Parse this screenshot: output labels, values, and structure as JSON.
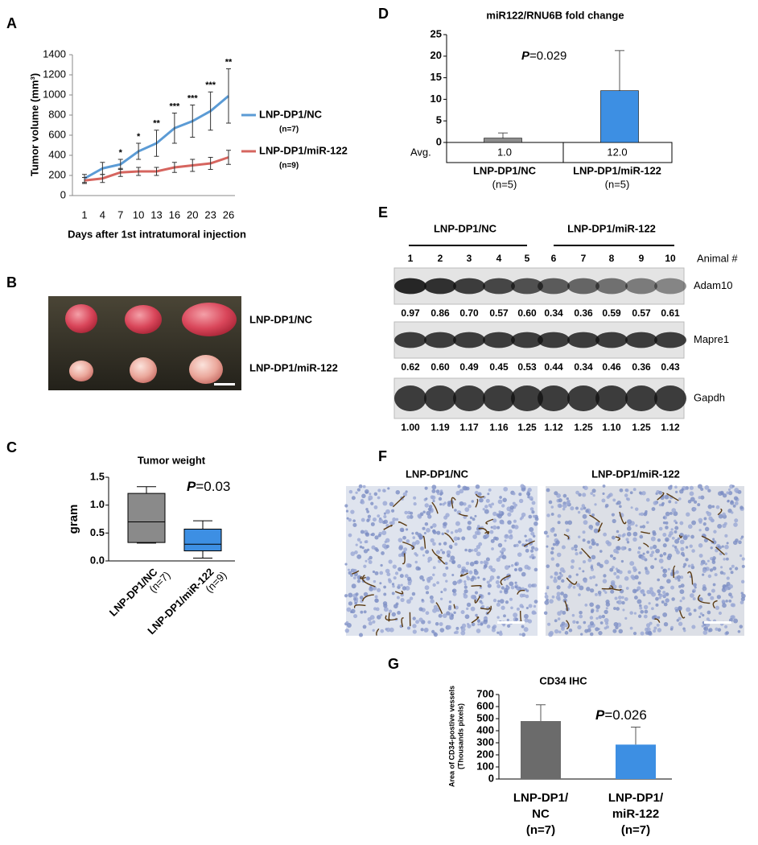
{
  "panels": {
    "A": "A",
    "B": "B",
    "C": "C",
    "D": "D",
    "E": "E",
    "F": "F",
    "G": "G"
  },
  "chart_data": [
    {
      "type": "line",
      "ylabel": "Tumor volume (mm³)",
      "xlabel": "Days after 1st intratumoral injection",
      "categories": [
        "1",
        "4",
        "7",
        "10",
        "13",
        "16",
        "20",
        "23",
        "26"
      ],
      "ylim": [
        0,
        1400
      ],
      "yticks": [
        0,
        200,
        400,
        600,
        800,
        1000,
        1200,
        1400
      ],
      "annotations": [
        null,
        null,
        "*",
        "*",
        "**",
        "***",
        "***",
        "***",
        "**"
      ],
      "series": [
        {
          "name": "LNP-DP1/NC",
          "n": "(n=7)",
          "color": "#5b9bd5",
          "values": [
            170,
            270,
            310,
            440,
            520,
            670,
            740,
            840,
            990
          ],
          "errors": [
            40,
            60,
            50,
            80,
            130,
            150,
            160,
            190,
            270
          ]
        },
        {
          "name": "LNP-DP1/miR-122",
          "n": "(n=9)",
          "color": "#d6655f",
          "values": [
            150,
            170,
            230,
            240,
            240,
            280,
            300,
            320,
            380
          ],
          "errors": [
            30,
            40,
            40,
            40,
            40,
            50,
            60,
            60,
            70
          ]
        }
      ]
    },
    {
      "type": "box",
      "title": "Tumor weight",
      "ylabel": "gram",
      "p_label": "P",
      "p_value": "=0.03",
      "categories": [
        [
          "LNP-DP1/NC",
          "(n=7)"
        ],
        [
          "LNP-DP1/miR-122",
          "(n=9)"
        ]
      ],
      "ylim": [
        0,
        1.5
      ],
      "yticks": [
        {
          "value": 0,
          "label": "0.0"
        },
        0.5,
        {
          "value": 1,
          "label": "1.0"
        },
        1.5
      ],
      "boxes": [
        {
          "min": 0.32,
          "q1": 0.33,
          "median": 0.7,
          "q3": 1.21,
          "max": 1.33,
          "color": "#8a8a8a"
        },
        {
          "min": 0.05,
          "q1": 0.18,
          "median": 0.3,
          "q3": 0.57,
          "max": 0.72,
          "color": "#3d8fe3"
        }
      ]
    },
    {
      "type": "bar",
      "title": "miR122/RNU6B fold change",
      "p_label": "P",
      "p_value": "=0.029",
      "row_label": "Avg.",
      "categories": [
        [
          "LNP-DP1/NC",
          "(n=5)"
        ],
        [
          "LNP-DP1/miR-122",
          "(n=5)"
        ]
      ],
      "values": [
        1.0,
        12.0
      ],
      "value_labels": [
        "1.0",
        "12.0"
      ],
      "errors": [
        1.2,
        9.3
      ],
      "colors": [
        "#8c8c8c",
        "#3d8fe3"
      ],
      "ylim": [
        0,
        25
      ],
      "yticks": [
        0,
        5,
        10,
        15,
        20,
        25
      ]
    },
    {
      "type": "bar",
      "title": "CD34 IHC",
      "ylabel": [
        "Area of CD34-postive vessels",
        "(Thousands pixels)"
      ],
      "p_label": "P",
      "p_value": "=0.026",
      "categories": [
        [
          "LNP-DP1/",
          "NC",
          "(n=7)"
        ],
        [
          "LNP-DP1/",
          "miR-122",
          "(n=7)"
        ]
      ],
      "values": [
        480,
        285
      ],
      "errors": [
        135,
        145
      ],
      "colors": [
        "#6b6b6b",
        "#3d8fe3"
      ],
      "ylim": [
        0,
        700
      ],
      "yticks": [
        0,
        100,
        200,
        300,
        400,
        500,
        600,
        700
      ]
    }
  ],
  "photo": {
    "labels": [
      "LNP-DP1/NC",
      "LNP-DP1/miR-122"
    ]
  },
  "blot": {
    "groups": [
      "LNP-DP1/NC",
      "LNP-DP1/miR-122"
    ],
    "animal_label": "Animal #",
    "animals": [
      "1",
      "2",
      "3",
      "4",
      "5",
      "6",
      "7",
      "8",
      "9",
      "10"
    ],
    "bands": [
      {
        "name": "Adam10",
        "quant": [
          "0.97",
          "0.86",
          "0.70",
          "0.57",
          "0.60",
          "0.34",
          "0.36",
          "0.59",
          "0.57",
          "0.61"
        ]
      },
      {
        "name": "Mapre1",
        "quant": [
          "0.62",
          "0.60",
          "0.49",
          "0.45",
          "0.53",
          "0.44",
          "0.34",
          "0.46",
          "0.36",
          "0.43"
        ]
      },
      {
        "name": "Gapdh",
        "quant": [
          "1.00",
          "1.19",
          "1.17",
          "1.16",
          "1.25",
          "1.12",
          "1.25",
          "1.10",
          "1.25",
          "1.12"
        ]
      }
    ]
  },
  "ihc": {
    "labels": [
      "LNP-DP1/NC",
      "LNP-DP1/miR-122"
    ]
  }
}
